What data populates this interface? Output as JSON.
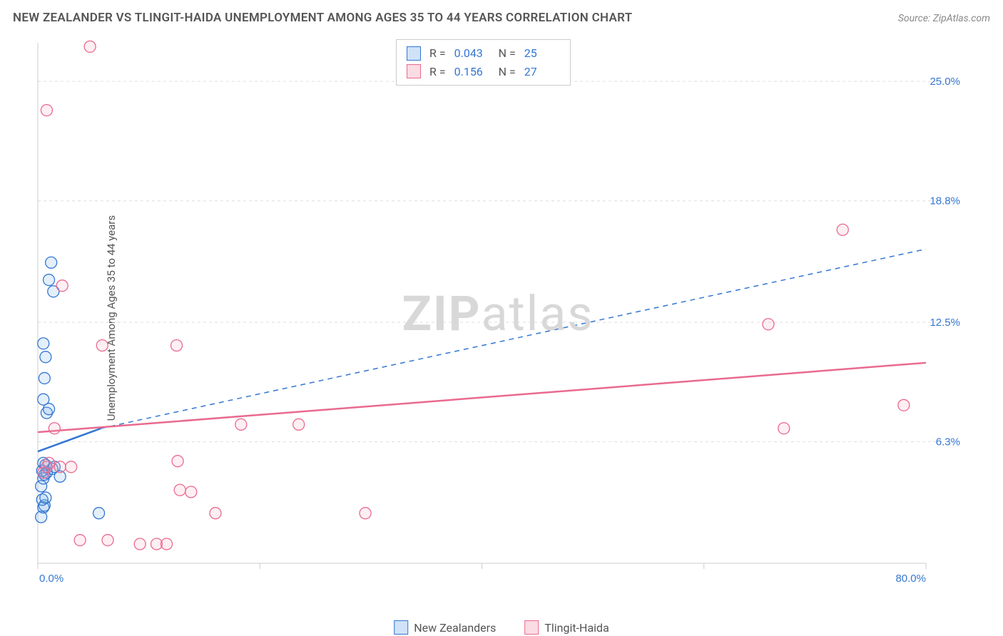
{
  "title": "NEW ZEALANDER VS TLINGIT-HAIDA UNEMPLOYMENT AMONG AGES 35 TO 44 YEARS CORRELATION CHART",
  "source": "Source: ZipAtlas.com",
  "y_axis_label": "Unemployment Among Ages 35 to 44 years",
  "watermark_bold": "ZIP",
  "watermark_light": "atlas",
  "chart": {
    "type": "scatter",
    "xlim": [
      0,
      80
    ],
    "ylim": [
      0,
      27
    ],
    "x_tick_marks": [
      0,
      20,
      40,
      60,
      80
    ],
    "y_gridlines": [
      6.3,
      12.5,
      18.8,
      25.0
    ],
    "x_axis_labels": [
      {
        "value": 0,
        "text": "0.0%"
      },
      {
        "value": 80,
        "text": "80.0%"
      }
    ],
    "y_axis_labels": [
      {
        "value": 6.3,
        "text": "6.3%"
      },
      {
        "value": 12.5,
        "text": "12.5%"
      },
      {
        "value": 18.8,
        "text": "18.8%"
      },
      {
        "value": 25.0,
        "text": "25.0%"
      }
    ],
    "background_color": "#ffffff",
    "grid_color": "#dddddd",
    "axis_color": "#cccccc",
    "tick_label_color": "#3477d3",
    "marker_radius": 8,
    "marker_fill_opacity": 0.18,
    "series": [
      {
        "name": "New Zealanders",
        "color": "#6ba5e5",
        "stroke": "#3477d3",
        "points": [
          [
            0.3,
            2.4
          ],
          [
            0.5,
            2.9
          ],
          [
            0.6,
            3.0
          ],
          [
            0.4,
            3.3
          ],
          [
            0.7,
            3.4
          ],
          [
            0.3,
            4.0
          ],
          [
            0.5,
            4.4
          ],
          [
            0.6,
            4.6
          ],
          [
            0.8,
            4.7
          ],
          [
            0.4,
            4.8
          ],
          [
            0.7,
            5.1
          ],
          [
            0.5,
            5.2
          ],
          [
            0.8,
            7.8
          ],
          [
            1.0,
            8.0
          ],
          [
            0.5,
            8.5
          ],
          [
            0.6,
            9.6
          ],
          [
            0.7,
            10.7
          ],
          [
            0.5,
            11.4
          ],
          [
            1.4,
            14.1
          ],
          [
            1.0,
            14.7
          ],
          [
            1.2,
            15.6
          ],
          [
            5.5,
            2.6
          ],
          [
            1.3,
            4.9
          ],
          [
            1.5,
            5.0
          ],
          [
            2.0,
            4.5
          ]
        ],
        "trend": {
          "x1": 0,
          "y1": 5.8,
          "x2": 5.7,
          "y2": 7.0,
          "dashed": false,
          "width": 2.5
        },
        "trend_ext": {
          "x1": 5.7,
          "y1": 7.0,
          "x2": 80,
          "y2": 16.3,
          "dashed": true,
          "width": 1.5
        }
      },
      {
        "name": "Tlingit-Haida",
        "color": "#f2a7bd",
        "stroke": "#e96a8f",
        "points": [
          [
            0.5,
            4.7
          ],
          [
            0.8,
            5.0
          ],
          [
            1.0,
            5.2
          ],
          [
            2.0,
            5.0
          ],
          [
            3.8,
            1.2
          ],
          [
            6.3,
            1.2
          ],
          [
            9.2,
            1.0
          ],
          [
            10.7,
            1.0
          ],
          [
            11.6,
            1.0
          ],
          [
            12.6,
            5.3
          ],
          [
            12.8,
            3.8
          ],
          [
            13.8,
            3.7
          ],
          [
            12.5,
            11.3
          ],
          [
            16.0,
            2.6
          ],
          [
            18.3,
            7.2
          ],
          [
            23.5,
            7.2
          ],
          [
            29.5,
            2.6
          ],
          [
            5.8,
            11.3
          ],
          [
            2.2,
            14.4
          ],
          [
            0.8,
            23.5
          ],
          [
            4.7,
            26.8
          ],
          [
            65.8,
            12.4
          ],
          [
            67.2,
            7.0
          ],
          [
            72.5,
            17.3
          ],
          [
            78.0,
            8.2
          ],
          [
            1.5,
            7.0
          ],
          [
            3.0,
            5.0
          ]
        ],
        "trend": {
          "x1": 0,
          "y1": 6.8,
          "x2": 80,
          "y2": 10.4,
          "dashed": false,
          "width": 2.5
        }
      }
    ],
    "correlation_legend": [
      {
        "swatch_fill": "#cfe2f8",
        "swatch_stroke": "#3477d3",
        "r": "0.043",
        "n": "25"
      },
      {
        "swatch_fill": "#fbdbe4",
        "swatch_stroke": "#e96a8f",
        "r": "0.156",
        "n": "27"
      }
    ],
    "series_legend": [
      {
        "swatch_fill": "#cfe2f8",
        "swatch_stroke": "#3477d3",
        "label": "New Zealanders"
      },
      {
        "swatch_fill": "#fbdbe4",
        "swatch_stroke": "#e96a8f",
        "label": "Tlingit-Haida"
      }
    ]
  }
}
